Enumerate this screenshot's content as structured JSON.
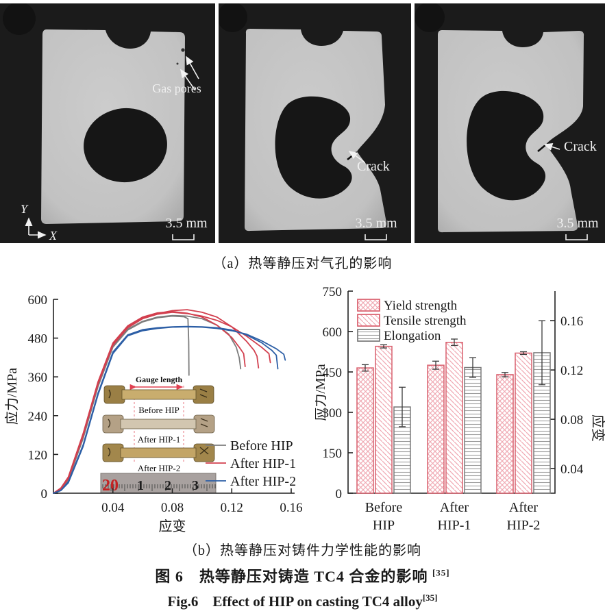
{
  "panels": [
    {
      "annotation": "Gas pores",
      "scale_bar": "3.5 mm",
      "axes": {
        "x": "X",
        "y": "Y"
      }
    },
    {
      "annotation": "Crack",
      "scale_bar": "3.5 mm"
    },
    {
      "annotation": "Crack",
      "scale_bar": "3.5 mm"
    }
  ],
  "captions": {
    "a": "（a）热等静压对气孔的影响",
    "b": "（b）热等静压对铸件力学性能的影响",
    "zh": "图 6　热等静压对铸造 TC4 合金的影响",
    "zh_ref": "[35]",
    "en": "Fig.6　Effect of HIP on casting TC4 alloy",
    "en_ref": "[35]"
  },
  "chart_data": [
    {
      "type": "line",
      "title": "",
      "xlabel": "应变",
      "ylabel": "应力/MPa",
      "xlim": [
        0,
        0.16
      ],
      "ylim": [
        0,
        600
      ],
      "xticks": [
        "0.04",
        "0.08",
        "0.12",
        "0.16"
      ],
      "yticks": [
        "0",
        "120",
        "240",
        "360",
        "480",
        "600"
      ],
      "grid": false,
      "legend_position": "lower-right",
      "series": [
        {
          "name": "Before HIP",
          "color": "#7d7d7d",
          "curves": [
            [
              [
                0,
                0
              ],
              [
                0.005,
                12
              ],
              [
                0.01,
                40
              ],
              [
                0.02,
                170
              ],
              [
                0.03,
                330
              ],
              [
                0.04,
                452
              ],
              [
                0.05,
                505
              ],
              [
                0.06,
                530
              ],
              [
                0.07,
                543
              ],
              [
                0.08,
                548
              ],
              [
                0.088,
                546
              ],
              [
                0.0905,
                540
              ],
              [
                0.091,
                470
              ],
              [
                0.0912,
                365
              ]
            ],
            [
              [
                0,
                0
              ],
              [
                0.005,
                14
              ],
              [
                0.01,
                45
              ],
              [
                0.02,
                175
              ],
              [
                0.03,
                335
              ],
              [
                0.04,
                455
              ],
              [
                0.05,
                508
              ],
              [
                0.06,
                532
              ],
              [
                0.07,
                545
              ],
              [
                0.08,
                550
              ],
              [
                0.09,
                548
              ],
              [
                0.1,
                540
              ],
              [
                0.11,
                520
              ],
              [
                0.118,
                492
              ],
              [
                0.123,
                452
              ],
              [
                0.125,
                420
              ],
              [
                0.126,
                385
              ]
            ]
          ]
        },
        {
          "name": "After HIP-1",
          "color": "#d23f4e",
          "curves": [
            [
              [
                0,
                0
              ],
              [
                0.005,
                16
              ],
              [
                0.01,
                50
              ],
              [
                0.02,
                185
              ],
              [
                0.03,
                345
              ],
              [
                0.04,
                465
              ],
              [
                0.05,
                518
              ],
              [
                0.06,
                545
              ],
              [
                0.07,
                558
              ],
              [
                0.08,
                562
              ],
              [
                0.09,
                557
              ],
              [
                0.1,
                545
              ],
              [
                0.11,
                520
              ],
              [
                0.12,
                482
              ],
              [
                0.125,
                452
              ],
              [
                0.128,
                432
              ],
              [
                0.129,
                392
              ]
            ],
            [
              [
                0,
                0
              ],
              [
                0.005,
                14
              ],
              [
                0.01,
                48
              ],
              [
                0.02,
                180
              ],
              [
                0.03,
                340
              ],
              [
                0.04,
                460
              ],
              [
                0.05,
                514
              ],
              [
                0.06,
                542
              ],
              [
                0.07,
                556
              ],
              [
                0.08,
                565
              ],
              [
                0.09,
                568
              ],
              [
                0.1,
                560
              ],
              [
                0.11,
                545
              ],
              [
                0.12,
                515
              ],
              [
                0.13,
                470
              ],
              [
                0.135,
                442
              ],
              [
                0.137,
                424
              ],
              [
                0.138,
                388
              ]
            ],
            [
              [
                0,
                0
              ],
              [
                0.005,
                13
              ],
              [
                0.01,
                45
              ],
              [
                0.02,
                178
              ],
              [
                0.03,
                338
              ],
              [
                0.04,
                458
              ],
              [
                0.05,
                512
              ],
              [
                0.06,
                540
              ],
              [
                0.07,
                554
              ],
              [
                0.08,
                560
              ],
              [
                0.09,
                556
              ],
              [
                0.1,
                548
              ],
              [
                0.11,
                535
              ],
              [
                0.12,
                515
              ],
              [
                0.13,
                486
              ],
              [
                0.14,
                452
              ],
              [
                0.145,
                432
              ],
              [
                0.146,
                404
              ]
            ]
          ]
        },
        {
          "name": "After HIP-2",
          "color": "#2d5fa6",
          "curves": [
            [
              [
                0,
                0
              ],
              [
                0.005,
                9
              ],
              [
                0.01,
                35
              ],
              [
                0.02,
                150
              ],
              [
                0.03,
                310
              ],
              [
                0.04,
                437
              ],
              [
                0.05,
                490
              ],
              [
                0.06,
                506
              ],
              [
                0.07,
                512
              ],
              [
                0.08,
                515
              ],
              [
                0.09,
                516
              ],
              [
                0.1,
                515
              ],
              [
                0.11,
                512
              ],
              [
                0.12,
                505
              ],
              [
                0.13,
                490
              ],
              [
                0.14,
                466
              ],
              [
                0.147,
                442
              ],
              [
                0.15,
                427
              ],
              [
                0.151,
                385
              ]
            ],
            [
              [
                0,
                0
              ],
              [
                0.005,
                8
              ],
              [
                0.01,
                32
              ],
              [
                0.02,
                145
              ],
              [
                0.03,
                305
              ],
              [
                0.04,
                432
              ],
              [
                0.05,
                487
              ],
              [
                0.06,
                503
              ],
              [
                0.07,
                510
              ],
              [
                0.08,
                514
              ],
              [
                0.09,
                515
              ],
              [
                0.1,
                514
              ],
              [
                0.11,
                510
              ],
              [
                0.12,
                503
              ],
              [
                0.13,
                492
              ],
              [
                0.14,
                472
              ],
              [
                0.15,
                447
              ],
              [
                0.155,
                430
              ],
              [
                0.156,
                412
              ]
            ]
          ]
        }
      ],
      "inset": {
        "gauge_label": "Gauge length",
        "specimen_labels": [
          "Before HIP",
          "After HIP-1",
          "After HIP-2"
        ],
        "ruler_numbers": [
          "20",
          "1",
          "2",
          "3"
        ]
      }
    },
    {
      "type": "bar",
      "categories": [
        [
          "Before",
          "HIP"
        ],
        [
          "After",
          "HIP-1"
        ],
        [
          "After",
          "HIP-2"
        ]
      ],
      "ylabel_left": "应力/MPa",
      "ylabel_right": "应变",
      "ylim_left": [
        0,
        750
      ],
      "yticks_left": [
        "0",
        "150",
        "300",
        "450",
        "600",
        "750"
      ],
      "ylim_right": [
        0.02,
        0.184
      ],
      "yticks_right": [
        "0.04",
        "0.08",
        "0.12",
        "0.16"
      ],
      "grid": false,
      "legend_position": "upper-left",
      "series": [
        {
          "name": "Yield strength",
          "axis": "left",
          "pattern": "crosshatch",
          "edge": "#d9606e",
          "values": [
            465,
            475,
            440
          ],
          "errors": [
            12,
            15,
            8
          ]
        },
        {
          "name": "Tensile strength",
          "axis": "left",
          "pattern": "diagonal",
          "edge": "#d9606e",
          "values": [
            545,
            560,
            520
          ],
          "errors": [
            6,
            12,
            5
          ]
        },
        {
          "name": "Elongation",
          "axis": "right",
          "pattern": "hlines",
          "edge": "#7a7a7a",
          "values": [
            0.09,
            0.122,
            0.134
          ],
          "errors": [
            0.016,
            0.008,
            0.026
          ]
        }
      ]
    }
  ]
}
